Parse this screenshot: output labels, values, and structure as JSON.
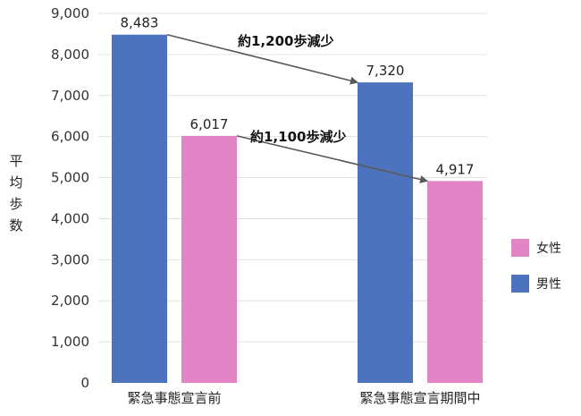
{
  "chart_data": {
    "type": "bar",
    "categories": [
      "緊急事態宣言前",
      "緊急事態宣言期間中"
    ],
    "series": [
      {
        "name": "男性",
        "color": "#4e73be",
        "values": [
          8483,
          7320
        ],
        "labels": [
          "8,483",
          "7,320"
        ]
      },
      {
        "name": "女性",
        "color": "#e384c6",
        "values": [
          6017,
          4917
        ],
        "labels": [
          "6,017",
          "4,917"
        ]
      }
    ],
    "ylabel": "平均歩数",
    "ylim": [
      0,
      9000
    ],
    "yticks": [
      0,
      1000,
      2000,
      3000,
      4000,
      5000,
      6000,
      7000,
      8000,
      9000
    ],
    "ytick_labels": [
      "0",
      "1,000",
      "2,000",
      "3,000",
      "4,000",
      "5,000",
      "6,000",
      "7,000",
      "8,000",
      "9,000"
    ],
    "grid": true,
    "legend": {
      "placement": "right",
      "order": [
        "女性",
        "男性"
      ]
    },
    "annotations": [
      {
        "text": "約1,200歩減少",
        "series": "男性"
      },
      {
        "text": "約1,100歩減少",
        "series": "女性"
      }
    ],
    "arrow_color": "#595959",
    "grid_color": "#e0e0e0"
  }
}
